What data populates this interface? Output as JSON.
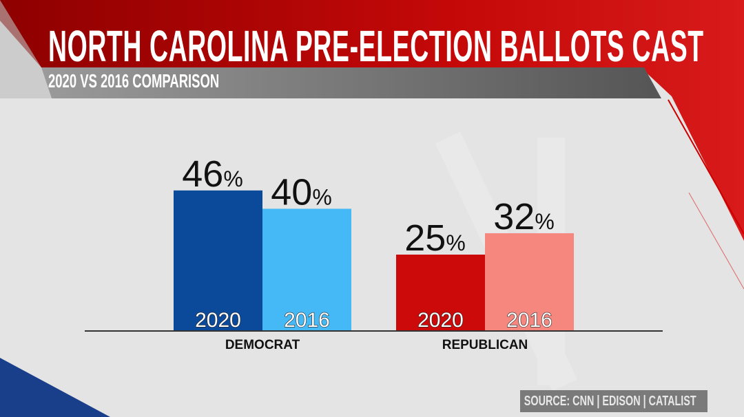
{
  "header": {
    "title": "NORTH CAROLINA PRE-ELECTION BALLOTS CAST",
    "subtitle": "2020 VS 2016 COMPARISON"
  },
  "source": "SOURCE: CNN | EDISON | CATALIST",
  "colors": {
    "dem_2020": "#0b4a9b",
    "dem_2016": "#44b9f6",
    "rep_2020": "#cc0a0a",
    "rep_2016": "#f6877f",
    "banner": "#c00a0a"
  },
  "chart_data": {
    "type": "bar",
    "title": "NORTH CAROLINA PRE-ELECTION BALLOTS CAST",
    "subtitle": "2020 VS 2016 COMPARISON",
    "categories": [
      "DEMOCRAT",
      "REPUBLICAN"
    ],
    "series": [
      {
        "name": "2020",
        "values": [
          46,
          25
        ]
      },
      {
        "name": "2016",
        "values": [
          40,
          32
        ]
      }
    ],
    "unit": "%",
    "ylim": [
      0,
      50
    ],
    "grid": false
  }
}
